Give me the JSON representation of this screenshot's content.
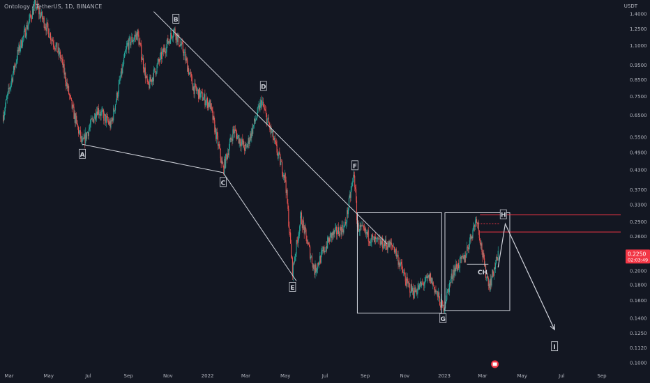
{
  "legend": {
    "title": "Ontology / TetherUS, 1D, BINANCE"
  },
  "axis": {
    "unit": "USDT",
    "price_ticks": [
      "1.4000",
      "1.2500",
      "1.1000",
      "0.9500",
      "0.8500",
      "0.7500",
      "0.6500",
      "0.5500",
      "0.4900",
      "0.4300",
      "0.3700",
      "0.3300",
      "0.2900",
      "0.2600",
      "0.2300",
      "0.2000",
      "0.1800",
      "0.1600",
      "0.1400",
      "0.1250",
      "0.1120",
      "0.1000"
    ],
    "time_ticks": [
      "Mar",
      "May",
      "Jul",
      "Sep",
      "Nov",
      "2022",
      "Mar",
      "May",
      "Jul",
      "Sep",
      "Nov",
      "2023",
      "Mar",
      "May",
      "Jul",
      "Sep"
    ]
  },
  "price_badge": {
    "value": "0.2250",
    "countdown": "02:03:49",
    "color": "#f23645"
  },
  "colors": {
    "background": "#131722",
    "up": "#26a69a",
    "down": "#ef5350",
    "line": "#d1d4dc",
    "resistance": "#f23645",
    "text": "#b2b5be"
  },
  "chart_data": {
    "type": "candlestick",
    "symbol": "Ontology / TetherUS",
    "interval": "1D",
    "exchange": "BINANCE",
    "y_scale": "log",
    "ylim": [
      0.095,
      1.55
    ],
    "x_range": [
      "2021-02-15",
      "2023-09-30"
    ],
    "price_series": [
      {
        "date": "2021-02-20",
        "close": 0.65
      },
      {
        "date": "2021-03-15",
        "close": 1.05
      },
      {
        "date": "2021-04-10",
        "close": 1.5
      },
      {
        "date": "2021-04-25",
        "close": 1.3
      },
      {
        "date": "2021-05-20",
        "close": 1.0
      },
      {
        "date": "2021-06-05",
        "close": 0.7
      },
      {
        "date": "2021-06-22",
        "close": 0.52
      },
      {
        "date": "2021-07-15",
        "close": 0.68
      },
      {
        "date": "2021-08-05",
        "close": 0.6
      },
      {
        "date": "2021-08-30",
        "close": 1.1
      },
      {
        "date": "2021-09-15",
        "close": 1.2
      },
      {
        "date": "2021-10-01",
        "close": 0.8
      },
      {
        "date": "2021-10-25",
        "close": 1.05
      },
      {
        "date": "2021-11-10",
        "close": 1.24
      },
      {
        "date": "2021-11-25",
        "close": 1.05
      },
      {
        "date": "2021-12-10",
        "close": 0.8
      },
      {
        "date": "2022-01-05",
        "close": 0.7
      },
      {
        "date": "2022-01-25",
        "close": 0.43
      },
      {
        "date": "2022-02-10",
        "close": 0.58
      },
      {
        "date": "2022-03-01",
        "close": 0.5
      },
      {
        "date": "2022-03-25",
        "close": 0.72
      },
      {
        "date": "2022-04-15",
        "close": 0.52
      },
      {
        "date": "2022-05-01",
        "close": 0.4
      },
      {
        "date": "2022-05-12",
        "close": 0.2
      },
      {
        "date": "2022-05-25",
        "close": 0.3
      },
      {
        "date": "2022-06-15",
        "close": 0.2
      },
      {
        "date": "2022-07-10",
        "close": 0.26
      },
      {
        "date": "2022-08-01",
        "close": 0.28
      },
      {
        "date": "2022-08-15",
        "close": 0.42
      },
      {
        "date": "2022-08-20",
        "close": 0.28
      },
      {
        "date": "2022-09-15",
        "close": 0.25
      },
      {
        "date": "2022-10-15",
        "close": 0.24
      },
      {
        "date": "2022-11-05",
        "close": 0.18
      },
      {
        "date": "2022-11-15",
        "close": 0.17
      },
      {
        "date": "2022-12-10",
        "close": 0.19
      },
      {
        "date": "2022-12-30",
        "close": 0.15
      },
      {
        "date": "2023-01-15",
        "close": 0.2
      },
      {
        "date": "2023-02-01",
        "close": 0.22
      },
      {
        "date": "2023-02-20",
        "close": 0.3
      },
      {
        "date": "2023-03-05",
        "close": 0.2
      },
      {
        "date": "2023-03-12",
        "close": 0.18
      },
      {
        "date": "2023-03-25",
        "close": 0.225
      }
    ],
    "wave_labels": [
      {
        "label": "A",
        "date": "2021-06-22",
        "price": 0.52
      },
      {
        "label": "B",
        "date": "2021-11-10",
        "price": 1.3
      },
      {
        "label": "C",
        "date": "2022-01-25",
        "price": 0.42
      },
      {
        "label": "D",
        "date": "2022-03-25",
        "price": 0.75
      },
      {
        "label": "E",
        "date": "2022-05-12",
        "price": 0.19
      },
      {
        "label": "F",
        "date": "2022-08-15",
        "price": 0.42
      },
      {
        "label": "G",
        "date": "2022-12-30",
        "price": 0.15
      },
      {
        "label": "H",
        "date": "2023-04-01",
        "price": 0.29
      },
      {
        "label": "I",
        "date": "2023-06-20",
        "price": 0.12
      },
      {
        "label": "CH",
        "date": "2023-03-01",
        "price": 0.21
      }
    ],
    "trend_lines": [
      {
        "from": {
          "date": "2021-06-22",
          "price": 0.52
        },
        "to": {
          "date": "2022-01-25",
          "price": 0.42
        }
      },
      {
        "from": {
          "date": "2021-10-10",
          "price": 1.42
        },
        "to": {
          "date": "2022-10-05",
          "price": 0.245
        }
      },
      {
        "from": {
          "date": "2022-01-25",
          "price": 0.42
        },
        "to": {
          "date": "2022-05-18",
          "price": 0.185
        }
      }
    ],
    "zones": [
      {
        "from": "2022-08-20",
        "to": "2022-12-28",
        "top": 0.31,
        "bottom": 0.145
      },
      {
        "from": "2023-01-02",
        "to": "2023-04-12",
        "top": 0.31,
        "bottom": 0.148
      }
    ],
    "resistance_levels": [
      0.305,
      0.268
    ],
    "projection": [
      {
        "date": "2023-03-25",
        "price": 0.205
      },
      {
        "date": "2023-04-05",
        "price": 0.285
      },
      {
        "date": "2023-06-20",
        "price": 0.128
      }
    ]
  }
}
